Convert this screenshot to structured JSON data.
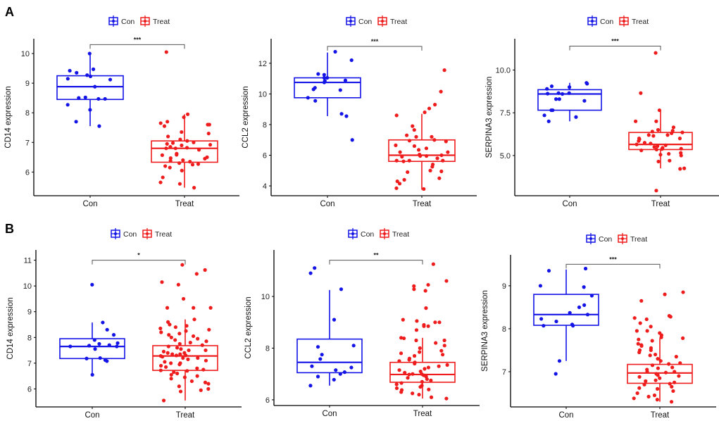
{
  "colors": {
    "con": "#1414e6",
    "treat": "#ee1c1c",
    "axis": "#000000",
    "bracket": "#555555"
  },
  "chart_data": [
    {
      "panel": "A",
      "type": "box",
      "ylabel": "CD14 expression",
      "categories": [
        "Con",
        "Treat"
      ],
      "legend": [
        "Con",
        "Treat"
      ],
      "legend_position": "top",
      "significance": "***",
      "yticks": [
        6,
        7,
        8,
        9,
        10
      ],
      "ytick_labels": [
        "6",
        "7",
        "8",
        "9",
        "10"
      ],
      "ylim": [
        5.2,
        10.5
      ],
      "bracket_y": 10.3,
      "boxes": [
        {
          "group": "Con",
          "q1": 8.45,
          "median": 8.88,
          "q3": 9.25,
          "whisker_low": 7.55,
          "whisker_high": 9.98,
          "points": [
            10.0,
            9.47,
            9.42,
            9.35,
            9.27,
            9.23,
            9.15,
            9.12,
            8.88,
            8.52,
            8.5,
            8.47,
            8.47,
            8.27,
            8.1,
            7.7,
            7.55
          ]
        },
        {
          "group": "Treat",
          "q1": 6.33,
          "median": 6.8,
          "q3": 7.05,
          "whisker_low": 5.47,
          "whisker_high": 7.95,
          "points": [
            10.05,
            7.95,
            7.85,
            7.7,
            7.65,
            7.6,
            7.6,
            7.55,
            7.35,
            7.3,
            7.2,
            7.1,
            7.05,
            7.0,
            6.98,
            6.95,
            6.92,
            6.9,
            6.85,
            6.82,
            6.8,
            6.8,
            6.75,
            6.62,
            6.58,
            6.57,
            6.5,
            6.47,
            6.45,
            6.4,
            6.38,
            6.35,
            6.3,
            6.27,
            6.25,
            6.2,
            6.15,
            6.05,
            5.82,
            5.65,
            5.6,
            5.47
          ]
        }
      ]
    },
    {
      "panel": "",
      "type": "box",
      "ylabel": "CCL2 expression",
      "categories": [
        "Con",
        "Treat"
      ],
      "legend": [
        "Con",
        "Treat"
      ],
      "legend_position": "top",
      "significance": "***",
      "yticks": [
        4,
        6,
        8,
        10,
        12
      ],
      "ytick_labels": [
        "4",
        "6",
        "8",
        "10",
        "12"
      ],
      "ylim": [
        3.36,
        13.6
      ],
      "bracket_y": 13.1,
      "boxes": [
        {
          "group": "Con",
          "q1": 9.75,
          "median": 10.75,
          "q3": 11.05,
          "whisker_low": 8.55,
          "whisker_high": 12.7,
          "points": [
            12.75,
            12.2,
            11.3,
            11.25,
            11.05,
            11.05,
            10.88,
            10.85,
            10.75,
            10.4,
            10.3,
            10.25,
            9.75,
            9.55,
            8.7,
            8.55,
            7.0
          ]
        },
        {
          "group": "Treat",
          "q1": 5.6,
          "median": 6.0,
          "q3": 7.0,
          "whisker_low": 3.75,
          "whisker_high": 8.7,
          "points": [
            11.55,
            10.15,
            9.3,
            9.05,
            8.8,
            8.6,
            7.9,
            7.65,
            7.3,
            7.2,
            7.2,
            7.0,
            6.95,
            6.9,
            6.65,
            6.6,
            6.45,
            6.35,
            6.2,
            6.2,
            6.05,
            6.0,
            5.95,
            5.95,
            5.9,
            5.8,
            5.65,
            5.65,
            5.65,
            5.6,
            5.4,
            5.25,
            5.0,
            4.95,
            4.9,
            4.5,
            4.4,
            4.3,
            4.15,
            3.85,
            3.8
          ]
        }
      ]
    },
    {
      "panel": "",
      "type": "box",
      "ylabel": "SERPINA3 expression",
      "categories": [
        "Con",
        "Treat"
      ],
      "legend": [
        "Con",
        "Treat"
      ],
      "legend_position": "top",
      "significance": "***",
      "yticks": [
        5,
        7.5,
        10
      ],
      "ytick_labels": [
        "5.0",
        "7.5",
        "10.0"
      ],
      "ylim": [
        2.65,
        11.83
      ],
      "bracket_y": 11.4,
      "boxes": [
        {
          "group": "Con",
          "q1": 7.65,
          "median": 8.6,
          "q3": 8.85,
          "whisker_low": 7.0,
          "whisker_high": 9.25,
          "points": [
            9.25,
            9.2,
            9.05,
            9.0,
            8.9,
            8.65,
            8.65,
            8.62,
            8.6,
            8.3,
            8.3,
            8.2,
            7.65,
            7.65,
            7.35,
            7.25,
            7.0
          ]
        },
        {
          "group": "Treat",
          "q1": 5.35,
          "median": 5.65,
          "q3": 6.35,
          "whisker_low": 4.25,
          "whisker_high": 7.65,
          "points": [
            11.0,
            8.65,
            7.65,
            7.0,
            7.0,
            6.65,
            6.5,
            6.45,
            6.4,
            6.35,
            6.3,
            6.2,
            6.2,
            6.15,
            6.0,
            6.0,
            5.95,
            5.85,
            5.75,
            5.7,
            5.65,
            5.6,
            5.55,
            5.5,
            5.45,
            5.4,
            5.38,
            5.35,
            5.3,
            5.15,
            5.1,
            5.05,
            5.0,
            4.7,
            4.65,
            4.25,
            4.22,
            2.95
          ]
        }
      ]
    },
    {
      "panel": "B",
      "type": "box",
      "ylabel": "CD14 expression",
      "categories": [
        "Con",
        "Treat"
      ],
      "legend": [
        "Con",
        "Treat"
      ],
      "legend_position": "top",
      "significance": "*",
      "yticks": [
        6,
        7,
        8,
        9,
        10,
        11
      ],
      "ytick_labels": [
        "6",
        "7",
        "8",
        "9",
        "10",
        "11"
      ],
      "ylim": [
        5.3,
        11.4
      ],
      "bracket_y": 11.0,
      "boxes": [
        {
          "group": "Con",
          "q1": 7.18,
          "median": 7.65,
          "q3": 7.95,
          "whisker_low": 6.55,
          "whisker_high": 8.58,
          "points": [
            10.05,
            8.58,
            8.3,
            8.1,
            7.9,
            7.78,
            7.75,
            7.7,
            7.68,
            7.65,
            7.65,
            7.55,
            7.2,
            7.18,
            7.12,
            7.08,
            6.55
          ]
        },
        {
          "group": "Treat",
          "q1": 6.72,
          "median": 7.28,
          "q3": 7.68,
          "whisker_low": 5.55,
          "whisker_high": 8.7,
          "points": [
            10.82,
            10.62,
            10.47,
            10.15,
            10.05,
            9.5,
            9.15,
            9.15,
            9.15,
            8.7,
            8.6,
            8.5,
            8.45,
            8.4,
            8.35,
            8.3,
            8.25,
            8.2,
            8.15,
            8.1,
            8.05,
            8.0,
            7.95,
            7.9,
            7.85,
            7.8,
            7.75,
            7.7,
            7.65,
            7.6,
            7.55,
            7.5,
            7.5,
            7.45,
            7.4,
            7.4,
            7.35,
            7.35,
            7.3,
            7.3,
            7.28,
            7.25,
            7.2,
            7.2,
            7.15,
            7.1,
            7.05,
            7.0,
            7.0,
            6.95,
            6.9,
            6.85,
            6.8,
            6.75,
            6.72,
            6.7,
            6.65,
            6.6,
            6.55,
            6.5,
            6.45,
            6.4,
            6.3,
            6.25,
            6.2,
            6.1,
            6.0,
            5.95,
            5.9,
            5.55
          ]
        }
      ]
    },
    {
      "panel": "",
      "type": "box",
      "ylabel": "CCL2 expression",
      "categories": [
        "Con",
        "Treat"
      ],
      "legend": [
        "Con",
        "Treat"
      ],
      "legend_position": "top",
      "significance": "**",
      "yticks": [
        6,
        8,
        10
      ],
      "ytick_labels": [
        "6",
        "8",
        "10"
      ],
      "ylim": [
        5.78,
        11.8
      ],
      "bracket_y": 11.4,
      "boxes": [
        {
          "group": "Con",
          "q1": 7.05,
          "median": 7.45,
          "q3": 8.35,
          "whisker_low": 6.55,
          "whisker_high": 10.25,
          "points": [
            11.1,
            10.9,
            10.28,
            9.1,
            8.1,
            8.05,
            7.75,
            7.58,
            7.3,
            7.25,
            7.15,
            7.07,
            7.0,
            6.9,
            6.78,
            6.55
          ]
        },
        {
          "group": "Treat",
          "q1": 6.68,
          "median": 6.98,
          "q3": 7.45,
          "whisker_low": 6.05,
          "whisker_high": 8.4,
          "points": [
            11.25,
            10.6,
            10.45,
            10.4,
            10.28,
            10.22,
            9.55,
            9.1,
            9.05,
            9.0,
            9.0,
            8.9,
            8.85,
            8.85,
            8.7,
            8.4,
            8.38,
            8.3,
            8.3,
            8.2,
            8.1,
            8.0,
            7.9,
            7.85,
            7.8,
            7.75,
            7.7,
            7.6,
            7.55,
            7.5,
            7.45,
            7.4,
            7.35,
            7.3,
            7.25,
            7.2,
            7.15,
            7.1,
            7.05,
            7.0,
            7.0,
            6.98,
            6.95,
            6.9,
            6.85,
            6.8,
            6.75,
            6.7,
            6.65,
            6.6,
            6.55,
            6.5,
            6.45,
            6.4,
            6.38,
            6.3,
            6.25,
            6.2,
            6.1,
            6.05
          ]
        }
      ]
    },
    {
      "panel": "",
      "type": "box",
      "ylabel": "SERPINA3 expression",
      "categories": [
        "Con",
        "Treat"
      ],
      "legend": [
        "Con",
        "Treat"
      ],
      "legend_position": "top",
      "significance": "***",
      "yticks": [
        7,
        8,
        9
      ],
      "ytick_labels": [
        "7",
        "8",
        "9"
      ],
      "ylim": [
        6.18,
        9.72
      ],
      "bracket_y": 9.5,
      "boxes": [
        {
          "group": "Con",
          "q1": 8.08,
          "median": 8.33,
          "q3": 8.8,
          "whisker_low": 7.25,
          "whisker_high": 9.38,
          "points": [
            9.4,
            9.35,
            9.0,
            8.97,
            8.77,
            8.55,
            8.5,
            8.37,
            8.33,
            8.23,
            8.17,
            8.1,
            8.07,
            8.07,
            7.25,
            6.95
          ]
        },
        {
          "group": "Treat",
          "q1": 6.73,
          "median": 6.97,
          "q3": 7.17,
          "whisker_low": 6.3,
          "whisker_high": 7.78,
          "points": [
            8.85,
            8.8,
            8.65,
            8.3,
            8.28,
            8.25,
            8.22,
            8.13,
            8.05,
            7.95,
            7.95,
            7.9,
            7.85,
            7.8,
            7.78,
            7.75,
            7.72,
            7.65,
            7.62,
            7.6,
            7.55,
            7.5,
            7.5,
            7.45,
            7.4,
            7.38,
            7.35,
            7.3,
            7.25,
            7.2,
            7.18,
            7.15,
            7.1,
            7.08,
            7.05,
            7.0,
            7.0,
            6.98,
            6.95,
            6.92,
            6.9,
            6.88,
            6.85,
            6.8,
            6.78,
            6.75,
            6.72,
            6.7,
            6.65,
            6.62,
            6.6,
            6.55,
            6.5,
            6.45,
            6.42,
            6.38,
            6.35,
            6.3
          ]
        }
      ]
    }
  ]
}
